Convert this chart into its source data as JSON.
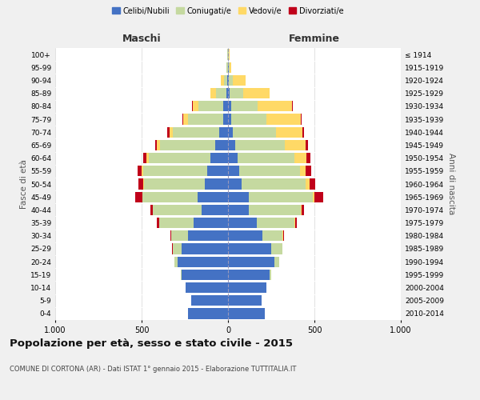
{
  "age_groups": [
    "0-4",
    "5-9",
    "10-14",
    "15-19",
    "20-24",
    "25-29",
    "30-34",
    "35-39",
    "40-44",
    "45-49",
    "50-54",
    "55-59",
    "60-64",
    "65-69",
    "70-74",
    "75-79",
    "80-84",
    "85-89",
    "90-94",
    "95-99",
    "100+"
  ],
  "birth_years": [
    "2010-2014",
    "2005-2009",
    "2000-2004",
    "1995-1999",
    "1990-1994",
    "1985-1989",
    "1980-1984",
    "1975-1979",
    "1970-1974",
    "1965-1969",
    "1960-1964",
    "1955-1959",
    "1950-1954",
    "1945-1949",
    "1940-1944",
    "1935-1939",
    "1930-1934",
    "1925-1929",
    "1920-1924",
    "1915-1919",
    "≤ 1914"
  ],
  "male": {
    "celibi": [
      230,
      215,
      245,
      270,
      290,
      270,
      230,
      200,
      155,
      175,
      135,
      120,
      100,
      75,
      50,
      30,
      30,
      10,
      5,
      2,
      2
    ],
    "coniugati": [
      0,
      0,
      0,
      5,
      20,
      50,
      100,
      200,
      280,
      320,
      350,
      370,
      360,
      320,
      270,
      200,
      140,
      60,
      20,
      5,
      2
    ],
    "vedovi": [
      0,
      0,
      0,
      0,
      0,
      0,
      0,
      0,
      0,
      2,
      5,
      8,
      10,
      15,
      20,
      30,
      35,
      30,
      15,
      2,
      0
    ],
    "divorziati": [
      0,
      0,
      0,
      0,
      2,
      5,
      5,
      10,
      15,
      40,
      30,
      25,
      20,
      10,
      10,
      5,
      5,
      0,
      0,
      0,
      0
    ]
  },
  "female": {
    "nubili": [
      215,
      195,
      220,
      240,
      270,
      250,
      200,
      165,
      120,
      120,
      80,
      65,
      55,
      40,
      30,
      20,
      20,
      10,
      5,
      3,
      2
    ],
    "coniugate": [
      0,
      0,
      2,
      8,
      25,
      65,
      115,
      220,
      300,
      370,
      370,
      350,
      330,
      290,
      250,
      200,
      150,
      80,
      25,
      5,
      2
    ],
    "vedove": [
      0,
      0,
      0,
      0,
      0,
      0,
      5,
      5,
      5,
      10,
      20,
      35,
      70,
      120,
      150,
      200,
      200,
      150,
      70,
      10,
      3
    ],
    "divorziate": [
      0,
      0,
      0,
      0,
      2,
      2,
      5,
      10,
      15,
      50,
      35,
      30,
      20,
      15,
      10,
      8,
      5,
      0,
      0,
      0,
      0
    ]
  },
  "colors": {
    "celibi": "#4472C4",
    "coniugati": "#c5d9a0",
    "vedovi": "#FFD966",
    "divorziati": "#C0001A"
  },
  "legend_labels": [
    "Celibi/Nubili",
    "Coniugati/e",
    "Vedovi/e",
    "Divorziati/e"
  ],
  "title": "Popolazione per età, sesso e stato civile - 2015",
  "subtitle": "COMUNE DI CORTONA (AR) - Dati ISTAT 1° gennaio 2015 - Elaborazione TUTTITALIA.IT",
  "xlabel_left": "Maschi",
  "xlabel_right": "Femmine",
  "ylabel_left": "Fasce di età",
  "ylabel_right": "Anni di nascita",
  "xlim": 1000,
  "background_color": "#f0f0f0",
  "plot_bg": "#ffffff"
}
